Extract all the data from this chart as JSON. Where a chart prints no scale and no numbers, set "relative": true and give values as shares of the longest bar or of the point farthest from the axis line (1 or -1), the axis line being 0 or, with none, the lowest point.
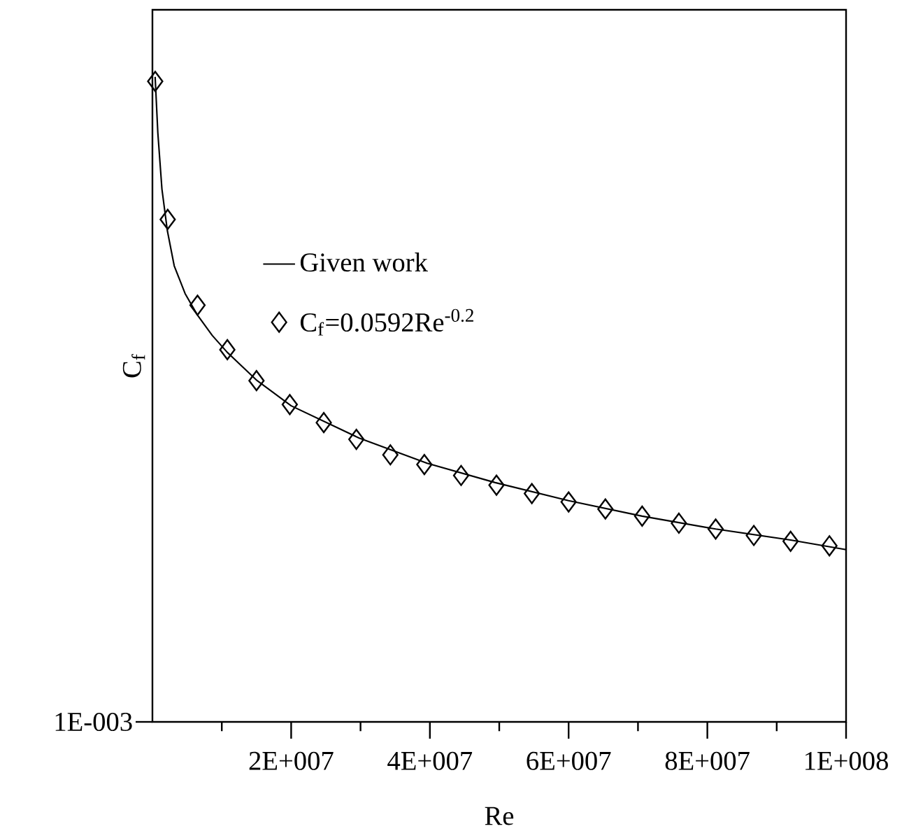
{
  "chart_data": {
    "type": "line",
    "xlabel": "Re",
    "ylabel": "C$_{f}$",
    "relative": true,
    "xlim": [
      0,
      100000000
    ],
    "xticks": [
      {
        "value": 10000000,
        "label": null
      },
      {
        "value": 20000000,
        "label": "2E+007"
      },
      {
        "value": 30000000,
        "label": null
      },
      {
        "value": 40000000,
        "label": "4E+007"
      },
      {
        "value": 50000000,
        "label": null
      },
      {
        "value": 60000000,
        "label": "6E+007"
      },
      {
        "value": 70000000,
        "label": null
      },
      {
        "value": 80000000,
        "label": "8E+007"
      },
      {
        "value": 90000000,
        "label": null
      },
      {
        "value": 100000000,
        "label": "1E+008"
      }
    ],
    "annotations": [
      "1E-003"
    ],
    "legend": "top",
    "grid": false,
    "series": [
      {
        "name": "Given work",
        "color": "#000000",
        "line_style": "solid",
        "marker": "none",
        "x": [
          390000,
          780000,
          1370000,
          2160000,
          3140000,
          4710000,
          6470000,
          8630000,
          10780000,
          15100000,
          20000000,
          29800000,
          39600000,
          49400000,
          60000000,
          70600000,
          81200000,
          92000000,
          100000000
        ],
        "values": [
          1,
          0.913,
          0.826,
          0.761,
          0.707,
          0.664,
          0.631,
          0.599,
          0.573,
          0.529,
          0.49,
          0.44,
          0.401,
          0.371,
          0.343,
          0.319,
          0.299,
          0.282,
          0.267
        ]
      },
      {
        "name": "C$_{f}$=0.0592Re$^{-0.2}$",
        "type": "scatter",
        "color": "#000000",
        "marker": "diamond",
        "x": [
          400000,
          2200000,
          6500000,
          10800000,
          15000000,
          19800000,
          24700000,
          29400000,
          34300000,
          39200000,
          44500000,
          49600000,
          54700000,
          60000000,
          65300000,
          70600000,
          75900000,
          81200000,
          86700000,
          92000000,
          97600000
        ],
        "values": [
          0.993,
          0.779,
          0.646,
          0.577,
          0.529,
          0.492,
          0.464,
          0.438,
          0.414,
          0.399,
          0.382,
          0.367,
          0.354,
          0.341,
          0.33,
          0.319,
          0.308,
          0.299,
          0.289,
          0.28,
          0.273
        ]
      }
    ]
  }
}
